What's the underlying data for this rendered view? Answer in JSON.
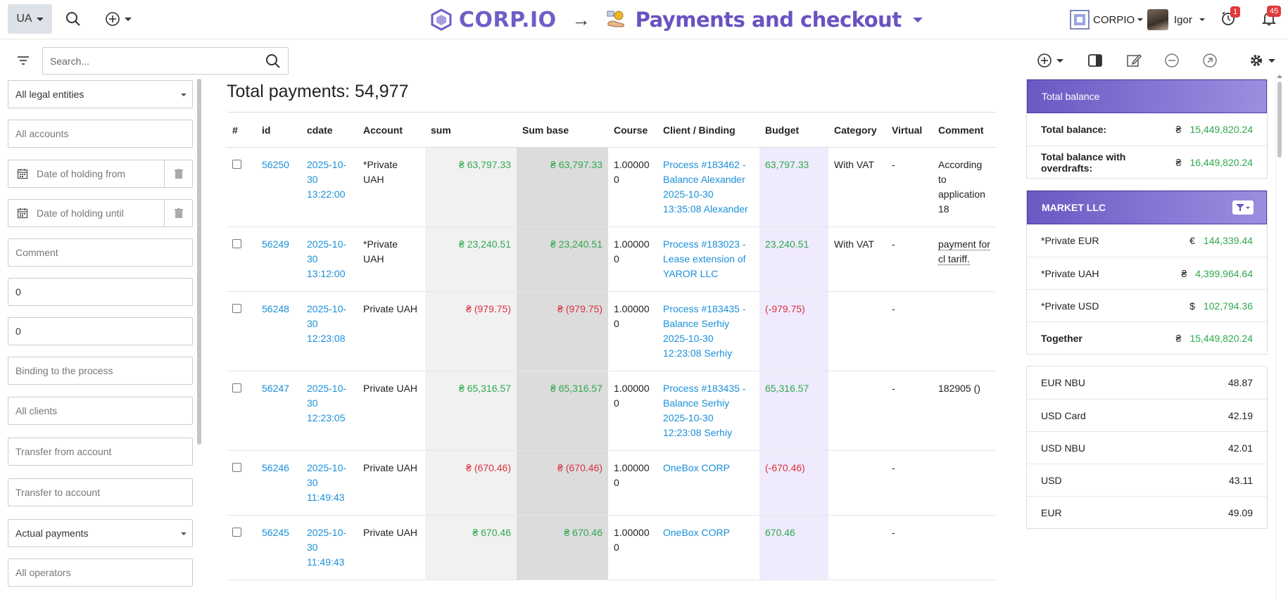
{
  "header": {
    "lang": "UA",
    "brand": "CORP.IO",
    "arrow": "→",
    "page_title": "Payments and checkout",
    "company": "CORPIO",
    "user": "Igor",
    "timer_badge": "1",
    "notifications_badge": "45"
  },
  "toolbar": {
    "search_placeholder": "Search..."
  },
  "filters": {
    "legal_entities": "All legal entities",
    "accounts": "All accounts",
    "date_from": "Date of holding from",
    "date_until": "Date of holding until",
    "comment": "Comment",
    "amount_from": "0",
    "amount_to": "0",
    "binding": "Binding to the process",
    "clients": "All clients",
    "transfer_from": "Transfer from account",
    "transfer_to": "Transfer to account",
    "payment_type": "Actual payments",
    "operators": "All operators"
  },
  "main": {
    "total_label": "Total payments: 54,977",
    "columns": [
      "#",
      "id",
      "cdate",
      "Account",
      "sum",
      "Sum base",
      "Course",
      "Client / Binding",
      "Budget",
      "Category",
      "Virtual",
      "Comment"
    ],
    "rows": [
      {
        "id": "56250",
        "cdate": "2025-10-30 13:22:00",
        "account": "*Private UAH",
        "sum": "₴ 63,797.33",
        "sum_base": "₴ 63,797.33",
        "sign": "pos",
        "course": "1.000000",
        "client": "Process #183462 - Balance Alexander 2025-10-30 13:35:08 Alexander",
        "budget": "63,797.33",
        "category": "With VAT",
        "virtual": "-",
        "comment": "According to application 18"
      },
      {
        "id": "56249",
        "cdate": "2025-10-30 13:12:00",
        "account": "*Private UAH",
        "sum": "₴ 23,240.51",
        "sum_base": "₴ 23,240.51",
        "sign": "pos",
        "course": "1.000000",
        "client": "Process #183023 - Lease extension of YAROR LLC",
        "budget": "23,240.51",
        "category": "With VAT",
        "virtual": "-",
        "comment": "payment for cl tariff."
      },
      {
        "id": "56248",
        "cdate": "2025-10-30 12:23:08",
        "account": "Private UAH",
        "sum": "₴ (979.75)",
        "sum_base": "₴ (979.75)",
        "sign": "neg",
        "course": "1.000000",
        "client": "Process #183435 - Balance Serhiy 2025-10-30 12:23:08 Serhiy",
        "budget": "(-979.75)",
        "category": "",
        "virtual": "-",
        "comment": ""
      },
      {
        "id": "56247",
        "cdate": "2025-10-30 12:23:05",
        "account": "Private UAH",
        "sum": "₴ 65,316.57",
        "sum_base": "₴ 65,316.57",
        "sign": "pos",
        "course": "1.000000",
        "client": "Process #183435 - Balance Serhiy 2025-10-30 12:23:08 Serhiy",
        "budget": "65,316.57",
        "category": "",
        "virtual": "-",
        "comment": "182905 ()"
      },
      {
        "id": "56246",
        "cdate": "2025-10-30 11:49:43",
        "account": "Private UAH",
        "sum": "₴ (670.46)",
        "sum_base": "₴ (670.46)",
        "sign": "neg",
        "course": "1.000000",
        "client": "OneBox CORP",
        "budget": "(-670.46)",
        "category": "",
        "virtual": "-",
        "comment": ""
      },
      {
        "id": "56245",
        "cdate": "2025-10-30 11:49:43",
        "account": "Private UAH",
        "sum": "₴ 670.46",
        "sum_base": "₴ 670.46",
        "sign": "pos",
        "course": "1.000000",
        "client": "OneBox CORP",
        "budget": "670.46",
        "category": "",
        "virtual": "-",
        "comment": ""
      }
    ]
  },
  "balance": {
    "title": "Total balance",
    "rows": [
      {
        "label": "Total balance:",
        "cur": "₴",
        "value": "15,449,820.24"
      },
      {
        "label": "Total balance with overdrafts:",
        "cur": "₴",
        "value": "16,449,820.24"
      }
    ]
  },
  "market": {
    "title": "MARKET LLC",
    "rows": [
      {
        "label": "*Private EUR",
        "cur": "€",
        "value": "144,339.44"
      },
      {
        "label": "*Private UAH",
        "cur": "₴",
        "value": "4,399,964.64"
      },
      {
        "label": "*Private USD",
        "cur": "$",
        "value": "102,794.36"
      },
      {
        "label": "Together",
        "cur": "₴",
        "value": "15,449,820.24"
      }
    ]
  },
  "rates": [
    {
      "label": "EUR NBU",
      "value": "48.87"
    },
    {
      "label": "USD Card",
      "value": "42.19"
    },
    {
      "label": "USD NBU",
      "value": "42.01"
    },
    {
      "label": "USD",
      "value": "43.11"
    },
    {
      "label": "EUR",
      "value": "49.09"
    }
  ],
  "colors": {
    "accent": "#6a52c2",
    "positive": "#2fa84f",
    "negative": "#d9303e",
    "link": "#1a90d8"
  }
}
